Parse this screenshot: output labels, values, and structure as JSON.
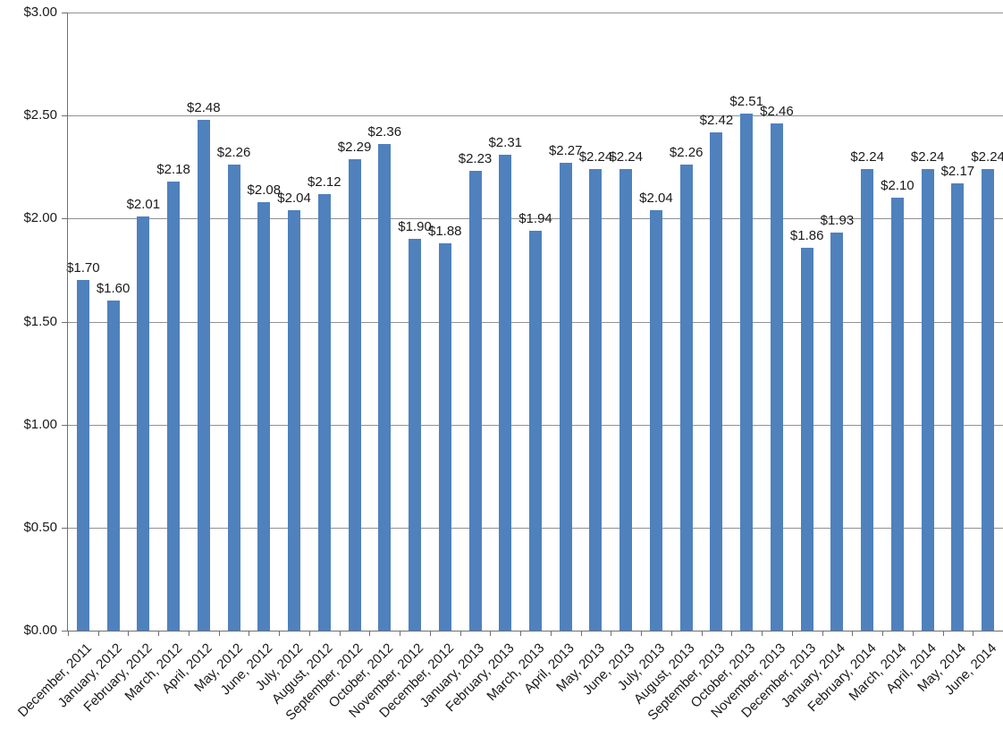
{
  "chart_data": {
    "type": "bar",
    "title": "",
    "xlabel": "",
    "ylabel": "",
    "legend": "none",
    "grid": "horizontal",
    "categories": [
      "December, 2011",
      "January, 2012",
      "February, 2012",
      "March, 2012",
      "April, 2012",
      "May, 2012",
      "June, 2012",
      "July, 2012",
      "August, 2012",
      "September, 2012",
      "October, 2012",
      "November, 2012",
      "December, 2012",
      "January, 2013",
      "February, 2013",
      "March, 2013",
      "April, 2013",
      "May, 2013",
      "June, 2013",
      "July, 2013",
      "August, 2013",
      "September, 2013",
      "October, 2013",
      "November, 2013",
      "December, 2013",
      "January, 2014",
      "February, 2014",
      "March, 2014",
      "April, 2014",
      "May, 2014",
      "June, 2014"
    ],
    "values": [
      1.7,
      1.6,
      2.01,
      2.18,
      2.48,
      2.26,
      2.08,
      2.04,
      2.12,
      2.29,
      2.36,
      1.9,
      1.88,
      2.23,
      2.31,
      1.94,
      2.27,
      2.24,
      2.24,
      2.04,
      2.26,
      2.42,
      2.51,
      2.46,
      1.86,
      1.93,
      2.24,
      2.1,
      2.24,
      2.17,
      2.24
    ],
    "data_labels": [
      "$1.70",
      "$1.60",
      "$2.01",
      "$2.18",
      "$2.48",
      "$2.26",
      "$2.08",
      "$2.04",
      "$2.12",
      "$2.29",
      "$2.36",
      "$1.90",
      "$1.88",
      "$2.23",
      "$2.31",
      "$1.94",
      "$2.27",
      "$2.24",
      "$2.24",
      "$2.04",
      "$2.26",
      "$2.42",
      "$2.51",
      "$2.46",
      "$1.86",
      "$1.93",
      "$2.24",
      "$2.10",
      "$2.24",
      "$2.17",
      "$2.24"
    ],
    "y_axis": {
      "min": 0,
      "max": 3,
      "step": 0.5,
      "tick_labels_top_to_bottom": [
        "$3.00",
        "$2.50",
        "$2.00",
        "$1.50",
        "$1.00",
        "$0.50",
        "$0.00"
      ]
    },
    "colors": {
      "bar": "#4F81BD",
      "gridline": "#919191",
      "axis": "#6E6E6E",
      "text": "#1a1a1a",
      "background": "#ffffff"
    }
  }
}
